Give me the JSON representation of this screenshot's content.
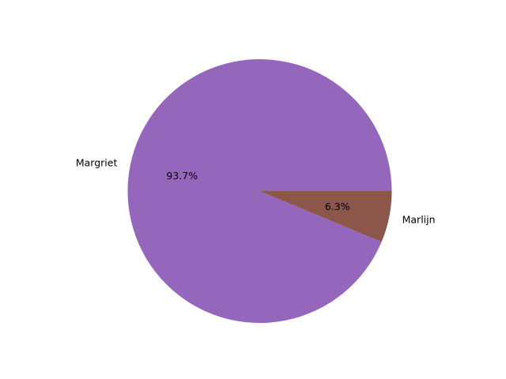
{
  "chart_data": {
    "type": "pie",
    "title": "",
    "slices": [
      {
        "label": "Margriet",
        "value": 93.7,
        "pct_label": "93.7%",
        "color": "#9467bd"
      },
      {
        "label": "Marlijn",
        "value": 6.3,
        "pct_label": "6.3%",
        "color": "#8c564b"
      }
    ],
    "start_angle": "0 degrees (3 o'clock)",
    "direction": "counterclockwise",
    "legend": "none"
  }
}
